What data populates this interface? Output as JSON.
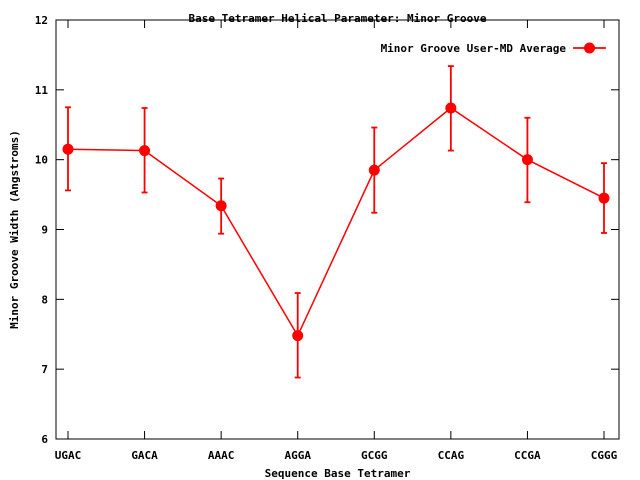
{
  "chart_data": {
    "type": "line",
    "title": "Base Tetramer Helical Parameter: Minor Groove",
    "xlabel": "Sequence Base Tetramer",
    "ylabel": "Minor Groove Width (Angstroms)",
    "categories": [
      "UGAC",
      "GACA",
      "AAAC",
      "AGGA",
      "GCGG",
      "CCAG",
      "CCGA",
      "CGGG"
    ],
    "ylim": [
      6,
      12
    ],
    "yticks": [
      6,
      7,
      8,
      9,
      10,
      11,
      12
    ],
    "grid": false,
    "legend_position": "top-right",
    "series": [
      {
        "name": "Minor Groove User-MD Average",
        "color": "#ff0000",
        "values": [
          10.15,
          10.13,
          9.34,
          7.48,
          9.85,
          10.74,
          10.0,
          9.45
        ],
        "error_low": [
          9.56,
          9.53,
          8.94,
          6.88,
          9.24,
          10.13,
          9.39,
          8.95
        ],
        "error_high": [
          10.75,
          10.74,
          9.73,
          8.09,
          10.46,
          11.34,
          10.6,
          9.95
        ]
      }
    ]
  }
}
